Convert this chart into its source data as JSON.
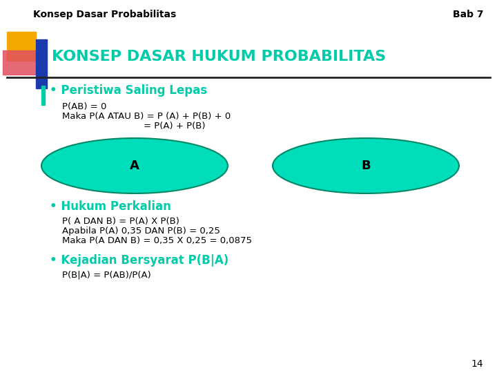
{
  "bg_color": "#ffffff",
  "header_text_left": "Konsep Dasar Probabilitas",
  "header_text_right": "Bab 7",
  "header_font_size": 10,
  "title_text": "KONSEP DASAR HUKUM PROBABILITAS",
  "title_color": "#00ccaa",
  "title_font_size": 16,
  "bullet_color": "#00ccaa",
  "bullet1_header": "Peristiwa Saling Lepas",
  "bullet1_line1": "P(AB) = 0",
  "bullet1_line2": "Maka P(A ATAU B) = P (A) + P(B) + 0",
  "bullet1_line3": "= P(A) + P(B)",
  "ellipse_color": "#00ddbb",
  "ellipse_edge_color": "#008866",
  "ellipse_label_A": "A",
  "ellipse_label_B": "B",
  "bullet2_header": "Hukum Perkalian",
  "bullet2_line1": "P( A DAN B) = P(A) X P(B)",
  "bullet2_line2": "Apabila P(A) 0,35 DAN P(B) = 0,25",
  "bullet2_line3": "Maka P(A DAN B) = 0,35 X 0,25 = 0,0875",
  "bullet3_header": "Kejadian Bersyarat P(B|A)",
  "bullet3_line1": "P(B|A) = P(AB)/P(A)",
  "page_number": "14",
  "deco_yellow": "#f5a800",
  "deco_red": "#e05060",
  "deco_blue": "#1a3aad",
  "line_color": "#222222",
  "body_font_size": 9.5,
  "bullet_font_size": 12
}
